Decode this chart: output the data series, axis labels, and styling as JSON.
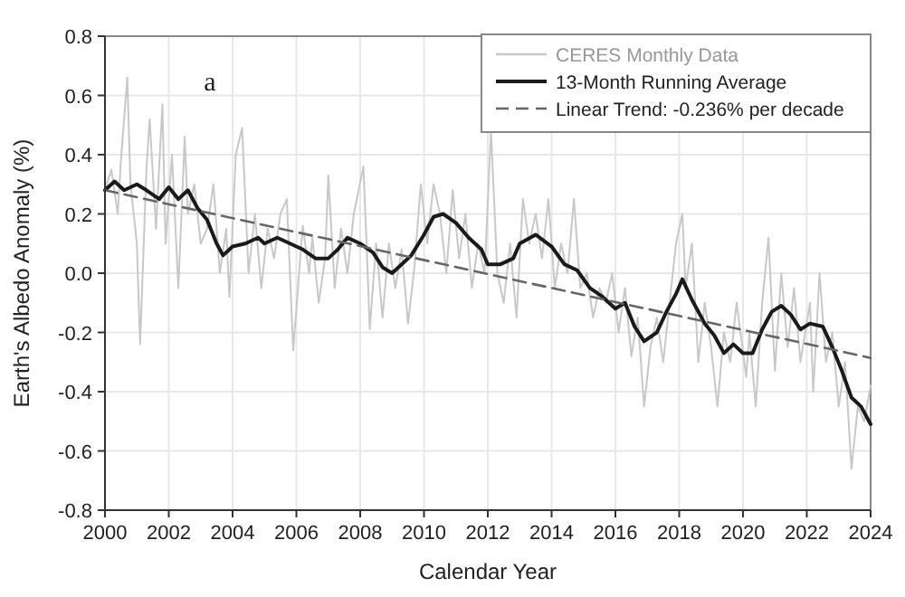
{
  "chart_data": {
    "type": "line",
    "xlabel": "Calendar Year",
    "ylabel": "Earth's Albedo Anomaly (%)",
    "xlim": [
      2000,
      2024
    ],
    "xticks": [
      2000,
      2002,
      2004,
      2006,
      2008,
      2010,
      2012,
      2014,
      2016,
      2018,
      2020,
      2022,
      2024
    ],
    "ylim": [
      -0.8,
      0.8
    ],
    "yticks": [
      {
        "value": -0.8,
        "label": "-0.8"
      },
      {
        "value": -0.6,
        "label": "-0.6"
      },
      {
        "value": -0.4,
        "label": "-0.4"
      },
      {
        "value": -0.2,
        "label": "-0.2"
      },
      {
        "value": 0,
        "label": "0.0"
      },
      {
        "value": 0.2,
        "label": "0.2"
      },
      {
        "value": 0.4,
        "label": "0.4"
      },
      {
        "value": 0.6,
        "label": "0.6"
      },
      {
        "value": 0.8,
        "label": "0.8"
      }
    ],
    "grid": true,
    "legend": "top right",
    "annotations": [
      "a"
    ],
    "series": [
      {
        "name": "CERES Monthly Data",
        "color": "#c8c8c8",
        "x": [
          2000.0,
          2000.2,
          2000.4,
          2000.5,
          2000.7,
          2000.8,
          2001.0,
          2001.1,
          2001.3,
          2001.4,
          2001.6,
          2001.8,
          2001.9,
          2002.1,
          2002.3,
          2002.5,
          2002.6,
          2002.8,
          2003.0,
          2003.2,
          2003.4,
          2003.6,
          2003.8,
          2003.9,
          2004.1,
          2004.3,
          2004.5,
          2004.7,
          2004.9,
          2005.1,
          2005.3,
          2005.5,
          2005.7,
          2005.9,
          2006.2,
          2006.4,
          2006.5,
          2006.7,
          2006.9,
          2007.0,
          2007.2,
          2007.4,
          2007.6,
          2007.8,
          2008.1,
          2008.2,
          2008.3,
          2008.5,
          2008.7,
          2008.9,
          2009.1,
          2009.3,
          2009.5,
          2009.7,
          2009.9,
          2010.1,
          2010.3,
          2010.5,
          2010.7,
          2010.9,
          2011.1,
          2011.3,
          2011.5,
          2011.7,
          2011.9,
          2012.1,
          2012.3,
          2012.5,
          2012.7,
          2012.9,
          2013.1,
          2013.3,
          2013.5,
          2013.7,
          2013.9,
          2014.1,
          2014.3,
          2014.5,
          2014.7,
          2014.9,
          2015.1,
          2015.3,
          2015.5,
          2015.7,
          2015.9,
          2016.1,
          2016.3,
          2016.5,
          2016.7,
          2016.9,
          2017.1,
          2017.3,
          2017.5,
          2017.7,
          2017.9,
          2018.1,
          2018.2,
          2018.4,
          2018.6,
          2018.8,
          2019.0,
          2019.2,
          2019.4,
          2019.6,
          2019.8,
          2020.1,
          2020.2,
          2020.4,
          2020.6,
          2020.8,
          2021.0,
          2021.2,
          2021.4,
          2021.6,
          2021.8,
          2022.1,
          2022.2,
          2022.4,
          2022.6,
          2022.8,
          2023.0,
          2023.2,
          2023.4,
          2023.6,
          2023.8,
          2024.0
        ],
        "values": [
          0.28,
          0.35,
          0.2,
          0.38,
          0.66,
          0.3,
          0.1,
          -0.24,
          0.35,
          0.52,
          0.15,
          0.57,
          0.1,
          0.4,
          -0.05,
          0.46,
          0.2,
          0.3,
          0.1,
          0.15,
          0.3,
          0.0,
          0.15,
          -0.08,
          0.4,
          0.49,
          0.0,
          0.2,
          -0.05,
          0.15,
          0.05,
          0.2,
          0.25,
          -0.26,
          0.16,
          0.0,
          0.12,
          -0.1,
          0.05,
          0.33,
          -0.05,
          0.15,
          0.0,
          0.2,
          0.36,
          0.1,
          -0.19,
          0.1,
          -0.15,
          0.1,
          -0.05,
          0.08,
          -0.17,
          0.02,
          0.3,
          0.1,
          0.3,
          0.2,
          0.0,
          0.28,
          0.05,
          0.2,
          -0.05,
          0.1,
          0.0,
          0.48,
          0.0,
          -0.1,
          0.1,
          -0.15,
          0.25,
          0.1,
          0.2,
          0.05,
          0.25,
          -0.05,
          0.1,
          0.0,
          0.25,
          -0.05,
          0.0,
          -0.15,
          -0.05,
          -0.1,
          0.0,
          -0.2,
          -0.05,
          -0.28,
          -0.15,
          -0.45,
          -0.25,
          -0.15,
          -0.3,
          -0.1,
          0.1,
          0.2,
          -0.05,
          0.1,
          -0.3,
          -0.1,
          -0.25,
          -0.45,
          -0.2,
          -0.3,
          -0.1,
          -0.35,
          -0.2,
          -0.45,
          -0.1,
          0.12,
          -0.33,
          0.0,
          -0.25,
          -0.05,
          -0.3,
          -0.1,
          -0.4,
          0.0,
          -0.3,
          -0.2,
          -0.45,
          -0.3,
          -0.66,
          -0.45,
          -0.5,
          -0.38
        ]
      },
      {
        "name": "13-Month Running Average",
        "color": "#1a1a1a",
        "x": [
          2000.0,
          2000.3,
          2000.6,
          2001.0,
          2001.3,
          2001.7,
          2002.0,
          2002.3,
          2002.6,
          2002.9,
          2003.2,
          2003.5,
          2003.7,
          2004.0,
          2004.4,
          2004.8,
          2005.0,
          2005.4,
          2005.8,
          2006.2,
          2006.6,
          2007.0,
          2007.3,
          2007.6,
          2008.0,
          2008.4,
          2008.7,
          2009.0,
          2009.3,
          2009.6,
          2010.0,
          2010.3,
          2010.6,
          2011.0,
          2011.4,
          2011.8,
          2012.0,
          2012.4,
          2012.8,
          2013.0,
          2013.5,
          2014.0,
          2014.4,
          2014.8,
          2015.2,
          2015.6,
          2016.0,
          2016.3,
          2016.6,
          2016.9,
          2017.3,
          2017.6,
          2017.9,
          2018.1,
          2018.4,
          2018.8,
          2019.1,
          2019.4,
          2019.7,
          2020.0,
          2020.3,
          2020.6,
          2020.9,
          2021.2,
          2021.5,
          2021.8,
          2022.1,
          2022.5,
          2022.8,
          2023.1,
          2023.4,
          2023.7,
          2024.0
        ],
        "values": [
          0.28,
          0.31,
          0.28,
          0.3,
          0.28,
          0.25,
          0.29,
          0.25,
          0.28,
          0.22,
          0.18,
          0.1,
          0.06,
          0.09,
          0.1,
          0.12,
          0.1,
          0.12,
          0.1,
          0.08,
          0.05,
          0.05,
          0.08,
          0.12,
          0.1,
          0.07,
          0.02,
          0.0,
          0.03,
          0.06,
          0.13,
          0.19,
          0.2,
          0.17,
          0.12,
          0.08,
          0.03,
          0.03,
          0.05,
          0.1,
          0.13,
          0.09,
          0.03,
          0.01,
          -0.05,
          -0.08,
          -0.12,
          -0.1,
          -0.18,
          -0.23,
          -0.2,
          -0.13,
          -0.07,
          -0.02,
          -0.09,
          -0.17,
          -0.21,
          -0.27,
          -0.24,
          -0.27,
          -0.27,
          -0.19,
          -0.13,
          -0.11,
          -0.14,
          -0.19,
          -0.17,
          -0.18,
          -0.25,
          -0.33,
          -0.42,
          -0.45,
          -0.51
        ]
      },
      {
        "name": "Linear Trend: -0.236% per decade",
        "color": "#666666",
        "line_style": "dashed",
        "x": [
          2000,
          2024
        ],
        "values": [
          0.28,
          -0.286
        ]
      }
    ]
  }
}
